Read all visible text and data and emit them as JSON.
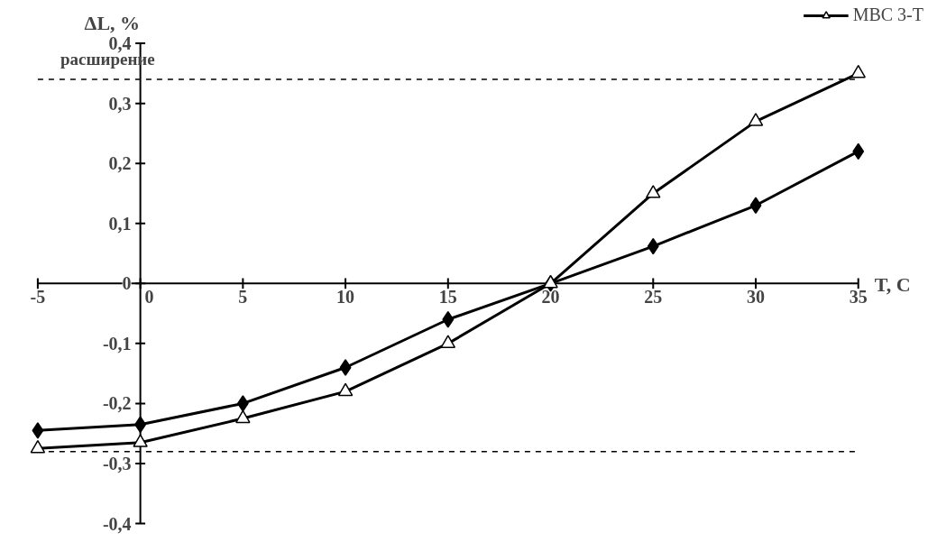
{
  "chart_data": {
    "type": "line",
    "xlabel": "T, C",
    "ylabel": "ΔL, %",
    "x": [
      -5,
      0,
      5,
      10,
      15,
      20,
      25,
      30,
      35
    ],
    "series": [
      {
        "color": "#000000",
        "marker": "diamond",
        "values": [
          -0.245,
          -0.235,
          -0.2,
          -0.14,
          -0.06,
          0,
          0.062,
          0.13,
          0.22
        ]
      },
      {
        "name": "MBC 3-T",
        "color": "#000000",
        "marker": "triangle",
        "values": [
          -0.275,
          -0.265,
          -0.225,
          -0.18,
          -0.1,
          0,
          0.15,
          0.27,
          0.35
        ]
      }
    ],
    "xlim": [
      -5,
      35
    ],
    "ylim": [
      -0.4,
      0.4
    ],
    "xticks": [
      -5,
      0,
      5,
      10,
      15,
      20,
      25,
      30,
      35
    ],
    "yticks": [
      {
        "value": -0.4,
        "label": "-0,4"
      },
      {
        "value": -0.3,
        "label": "-0,3"
      },
      {
        "value": -0.2,
        "label": "-0,2"
      },
      {
        "value": -0.1,
        "label": "-0,1"
      },
      0,
      {
        "value": 0.1,
        "label": "0,1"
      },
      {
        "value": 0.2,
        "label": "0,2"
      },
      {
        "value": 0.3,
        "label": "0,3"
      },
      {
        "value": 0.4,
        "label": "0,4"
      }
    ],
    "ref_lines": [
      {
        "axis": "y",
        "value": 0.34,
        "label": "расширение",
        "line_style": "dashed"
      },
      {
        "axis": "y",
        "value": -0.28,
        "line_style": "dashed"
      }
    ],
    "grid": false,
    "legend": "top right",
    "line_style": "solid"
  }
}
